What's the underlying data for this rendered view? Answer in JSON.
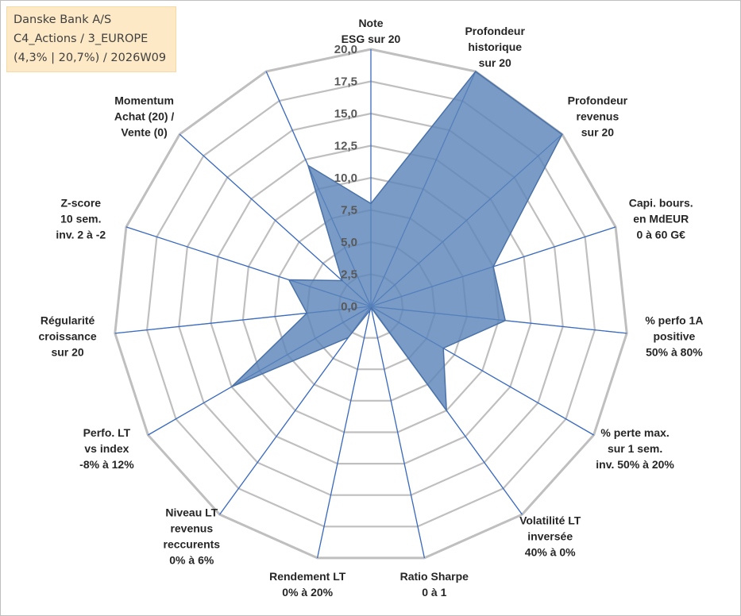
{
  "title_box": {
    "line1": "Danske Bank A/S",
    "line2": "C4_Actions / 3_EUROPE",
    "line3": "(4,3% | 20,7%) / 2026W09"
  },
  "colors": {
    "fill": "#5b85b9",
    "stroke": "#4a72a8",
    "spoke": "#3b6bbf",
    "grid": "#bfbfbf",
    "frame": "#bfbfbf",
    "title_bg": "#fde9c6"
  },
  "chart_data": {
    "type": "radar",
    "rlim": [
      0,
      20
    ],
    "rticks": [
      "0,0",
      "2,5",
      "5,0",
      "7,5",
      "10,0",
      "12,5",
      "15,0",
      "17,5",
      "20,0"
    ],
    "axes": [
      {
        "label": [
          "Note",
          "ESG sur 20"
        ],
        "value": 8.0
      },
      {
        "label": [
          "Profondeur",
          "historique",
          "sur 20"
        ],
        "value": 20.0
      },
      {
        "label": [
          "Profondeur",
          "revenus",
          "sur 20"
        ],
        "value": 20.0
      },
      {
        "label": [
          "Capi. bours.",
          "en MdEUR",
          "0 à 60 G€"
        ],
        "value": 10.0
      },
      {
        "label": [
          "% perfo 1A",
          "positive",
          "50% à 80%"
        ],
        "value": 10.5
      },
      {
        "label": [
          "% perte max.",
          "sur 1 sem.",
          "inv. 50% à 20%"
        ],
        "value": 6.5
      },
      {
        "label": [
          "Volatilité LT",
          "inversée",
          "40% à 0%"
        ],
        "value": 10.0
      },
      {
        "label": [
          "Ratio Sharpe",
          "0 à 1"
        ],
        "value": 0.1
      },
      {
        "label": [
          "Rendement LT",
          "0% à 20%"
        ],
        "value": 0.3
      },
      {
        "label": [
          "Niveau LT",
          "revenus",
          "reccurents",
          "0% à 6%"
        ],
        "value": 3.0
      },
      {
        "label": [
          "Perfo. LT",
          "vs index",
          "-8% à 12%"
        ],
        "value": 12.5
      },
      {
        "label": [
          "Régularité",
          "croissance",
          "sur 20"
        ],
        "value": 5.0
      },
      {
        "label": [
          "Z-score",
          "10 sem.",
          "inv. 2 à -2"
        ],
        "value": 6.7
      },
      {
        "label": [
          "Momentum",
          "Achat (20) /",
          "Vente (0)"
        ],
        "value": 3.0
      },
      {
        "label": [],
        "value": 12.0
      }
    ]
  }
}
